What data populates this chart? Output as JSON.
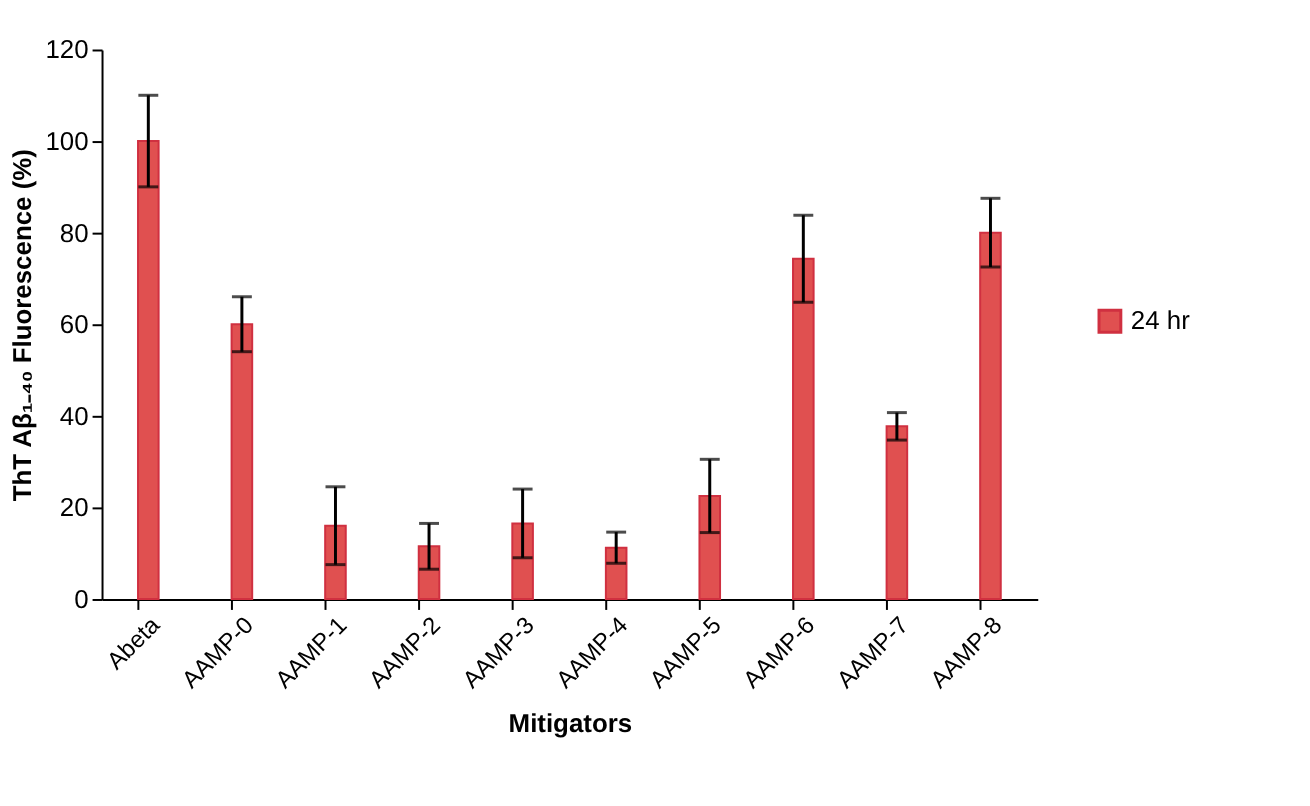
{
  "chart_data": {
    "type": "bar",
    "xlabel": "Mitigators",
    "ylabel": "ThT Aβ₁₋₄₀ Fluorescence (%)",
    "categories": [
      "Abeta",
      "AAMP-0",
      "AAMP-1",
      "AAMP-2",
      "AAMP-3",
      "AAMP-4",
      "AAMP-5",
      "AAMP-6",
      "AAMP-7",
      "AAMP-8"
    ],
    "series": [
      {
        "name": "24 hr",
        "color": "#e05050",
        "values": [
          100,
          60,
          16,
          11.5,
          16.5,
          11.2,
          22.5,
          74.3,
          37.7,
          80
        ],
        "errors": [
          10,
          6,
          8.5,
          5,
          7.5,
          3.4,
          8,
          9.5,
          3,
          7.5
        ]
      }
    ],
    "ylim": [
      0,
      120
    ],
    "yticks": [
      0,
      20,
      40,
      60,
      80,
      100,
      120
    ],
    "grid": false,
    "legend": "right"
  }
}
